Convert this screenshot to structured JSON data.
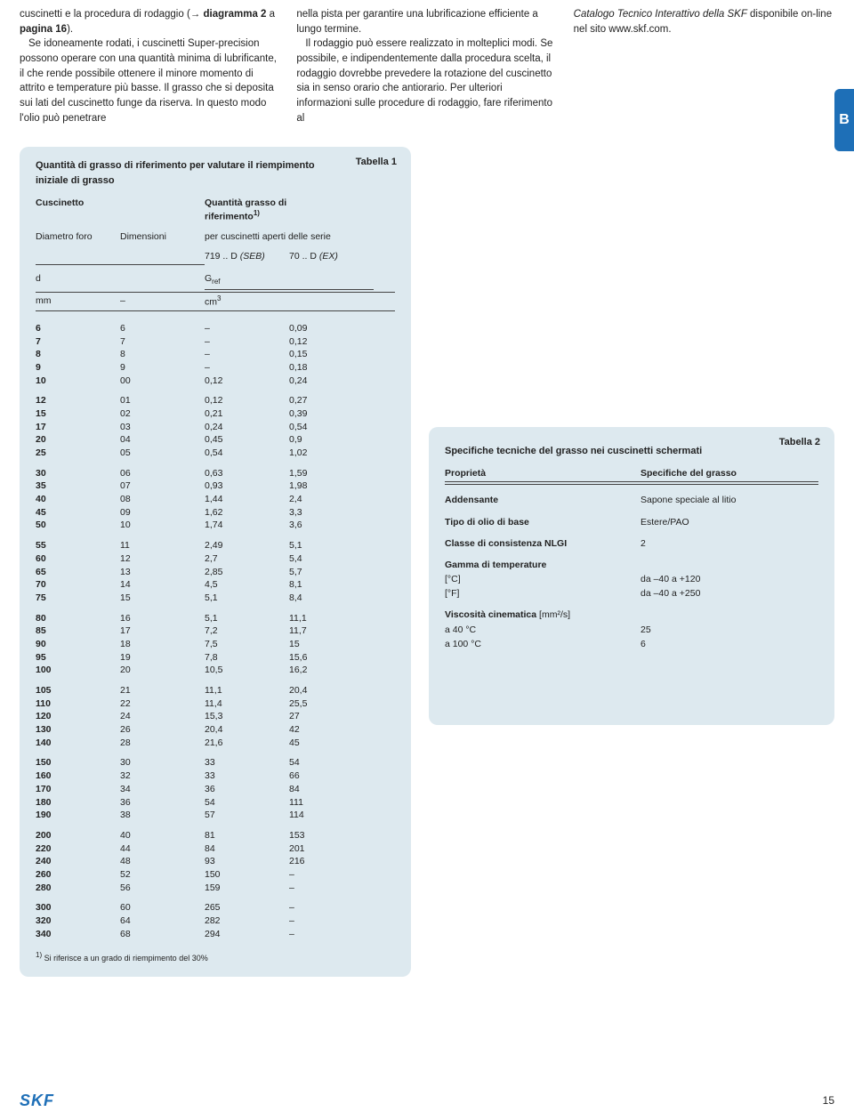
{
  "col1": {
    "p1a": "cuscinetti e la procedura di rodaggio (",
    "arrow": "→",
    "p1b": " diagramma 2",
    "p1c": " a ",
    "p1d": "pagina 16",
    "p1e": ").",
    "p2": "Se idoneamente rodati, i cuscinetti Super-precision possono operare con una quantità minima di lubrificante, il che rende possibile ottenere il minore momento di attrito e temperature più basse. Il grasso che si deposita sui lati del cuscinetto funge da riserva. In questo modo l'olio può penetrare"
  },
  "col2": {
    "p1": "nella pista per garantire una lubrificazione efficiente a lungo termine.",
    "p2": "Il rodaggio può essere realizzato in molteplici modi. Se possibile, e indipendentemente dalla procedura scelta, il rodaggio dovrebbe prevedere la rotazione del cuscinetto sia in senso orario che antiorario. Per ulteriori informazioni sulle procedure di rodaggio, fare riferimento al"
  },
  "col3": {
    "p1a": "Catalogo Tecnico Interattivo della SKF",
    "p1b": " disponibile on-line nel sito www.skf.com."
  },
  "sidetab": "B",
  "table1": {
    "label": "Tabella 1",
    "title1": "Quantità di grasso di riferimento per valutare il riempimento",
    "title2": "iniziale di grasso",
    "h_cuscinetto": "Cuscinetto",
    "h_quantita": "Quantità grasso di riferimento",
    "h_diametro": "Diametro foro",
    "h_dimensioni": "Dimensioni",
    "h_percusc": "per cuscinetti aperti delle serie",
    "h_719": "719 .. D ",
    "h_seb": "(SEB)",
    "h_70": "70 .. D ",
    "h_ex": "(EX)",
    "h_d": "d",
    "h_gref": "G",
    "h_gref_sub": "ref",
    "u_mm": "mm",
    "u_dash": "–",
    "u_cm3": "cm",
    "u_cm3_sup": "3",
    "footnote_num": "1)",
    "footnote_text": " Si riferisce a un grado di riempimento del 30%",
    "groups": [
      [
        [
          "6",
          "6",
          "–",
          "0,09"
        ],
        [
          "7",
          "7",
          "–",
          "0,12"
        ],
        [
          "8",
          "8",
          "–",
          "0,15"
        ],
        [
          "9",
          "9",
          "–",
          "0,18"
        ],
        [
          "10",
          "00",
          "0,12",
          "0,24"
        ]
      ],
      [
        [
          "12",
          "01",
          "0,12",
          "0,27"
        ],
        [
          "15",
          "02",
          "0,21",
          "0,39"
        ],
        [
          "17",
          "03",
          "0,24",
          "0,54"
        ],
        [
          "20",
          "04",
          "0,45",
          "0,9"
        ],
        [
          "25",
          "05",
          "0,54",
          "1,02"
        ]
      ],
      [
        [
          "30",
          "06",
          "0,63",
          "1,59"
        ],
        [
          "35",
          "07",
          "0,93",
          "1,98"
        ],
        [
          "40",
          "08",
          "1,44",
          "2,4"
        ],
        [
          "45",
          "09",
          "1,62",
          "3,3"
        ],
        [
          "50",
          "10",
          "1,74",
          "3,6"
        ]
      ],
      [
        [
          "55",
          "11",
          "2,49",
          "5,1"
        ],
        [
          "60",
          "12",
          "2,7",
          "5,4"
        ],
        [
          "65",
          "13",
          "2,85",
          "5,7"
        ],
        [
          "70",
          "14",
          "4,5",
          "8,1"
        ],
        [
          "75",
          "15",
          "5,1",
          "8,4"
        ]
      ],
      [
        [
          "80",
          "16",
          "5,1",
          "11,1"
        ],
        [
          "85",
          "17",
          "7,2",
          "11,7"
        ],
        [
          "90",
          "18",
          "7,5",
          "15"
        ],
        [
          "95",
          "19",
          "7,8",
          "15,6"
        ],
        [
          "100",
          "20",
          "10,5",
          "16,2"
        ]
      ],
      [
        [
          "105",
          "21",
          "11,1",
          "20,4"
        ],
        [
          "110",
          "22",
          "11,4",
          "25,5"
        ],
        [
          "120",
          "24",
          "15,3",
          "27"
        ],
        [
          "130",
          "26",
          "20,4",
          "42"
        ],
        [
          "140",
          "28",
          "21,6",
          "45"
        ]
      ],
      [
        [
          "150",
          "30",
          "33",
          "54"
        ],
        [
          "160",
          "32",
          "33",
          "66"
        ],
        [
          "170",
          "34",
          "36",
          "84"
        ],
        [
          "180",
          "36",
          "54",
          "111"
        ],
        [
          "190",
          "38",
          "57",
          "114"
        ]
      ],
      [
        [
          "200",
          "40",
          "81",
          "153"
        ],
        [
          "220",
          "44",
          "84",
          "201"
        ],
        [
          "240",
          "48",
          "93",
          "216"
        ],
        [
          "260",
          "52",
          "150",
          "–"
        ],
        [
          "280",
          "56",
          "159",
          "–"
        ]
      ],
      [
        [
          "300",
          "60",
          "265",
          "–"
        ],
        [
          "320",
          "64",
          "282",
          "–"
        ],
        [
          "340",
          "68",
          "294",
          "–"
        ]
      ]
    ]
  },
  "table2": {
    "label": "Tabella 2",
    "title": "Specifiche tecniche del grasso nei cuscinetti schermati",
    "h_prop": "Proprietà",
    "h_spec": "Specifiche del grasso",
    "rows": [
      {
        "k": "Addensante",
        "v": "Sapone speciale al litio"
      },
      {
        "k": "Tipo di olio di base",
        "v": "Estere/PAO"
      },
      {
        "k": "Classe di consistenza NLGI",
        "v": "2"
      }
    ],
    "temp_title": "Gamma di temperature",
    "temp_c_k": "[°C]",
    "temp_c_v": "da –40 a +120",
    "temp_f_k": "[°F]",
    "temp_f_v": "da –40 a +250",
    "visc_title": "Viscosità cinematica",
    "visc_unit": " [mm²/s]",
    "visc40_k": "a 40 °C",
    "visc40_v": "25",
    "visc100_k": "a 100 °C",
    "visc100_v": "6"
  },
  "logo": "SKF",
  "page": "15"
}
